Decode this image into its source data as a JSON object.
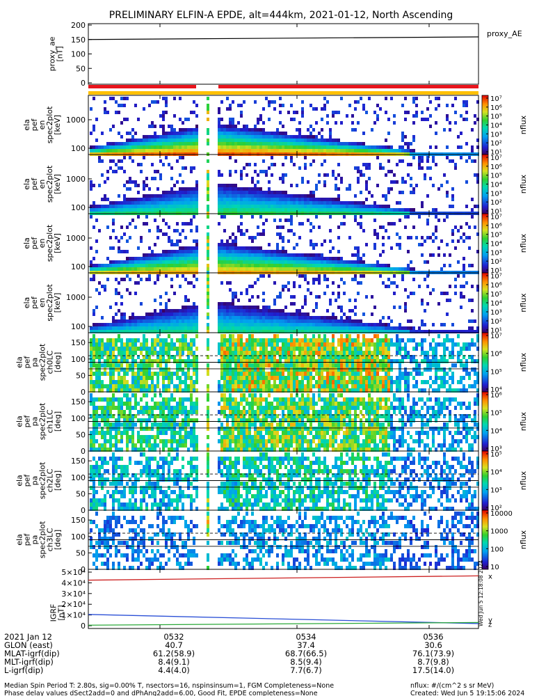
{
  "title": "PRELIMINARY ELFIN-A EPDE, alt=444km, 2021-01-12, North Ascending",
  "colors": {
    "ae_line": "#000000",
    "bar_red": "#e8141c",
    "bar_yellow": "#ffc000",
    "igrf_x": "#cc1f1f",
    "igrf_y": "#2a4fd6",
    "igrf_z": "#2aa838"
  },
  "chart_data": [
    {
      "type": "line",
      "name": "proxy_ae",
      "ylabel_lines": [
        "proxy_ae",
        "[nT]"
      ],
      "legend": "proxy_AE",
      "yticks": [
        "200",
        "150",
        "100",
        "50",
        "0"
      ],
      "ylim": [
        0,
        200
      ],
      "x": [
        "0530:37",
        "0537:10"
      ],
      "values": [
        150,
        159
      ]
    },
    {
      "type": "heatmap",
      "name": "spec-1",
      "ylabel_lines": [
        "ela",
        "pef",
        "en",
        "spec2plot",
        "[keV]"
      ],
      "yticks": [
        "1000",
        "100"
      ],
      "cbar_label": "nflux",
      "cbar_ticks": [
        "10⁷",
        "10⁶",
        "10⁵",
        "10⁴",
        "10³",
        "10²",
        "10¹"
      ]
    },
    {
      "type": "heatmap",
      "name": "spec-2",
      "ylabel_lines": [
        "ela",
        "pef",
        "en",
        "spec2plot",
        "[keV]"
      ],
      "yticks": [
        "1000",
        "100"
      ],
      "cbar_label": "nflux",
      "cbar_ticks": [
        "10⁷",
        "10⁶",
        "10⁵",
        "10⁴",
        "10³",
        "10²",
        "10¹"
      ]
    },
    {
      "type": "heatmap",
      "name": "spec-3",
      "ylabel_lines": [
        "ela",
        "pef",
        "en",
        "spec2plot",
        "[keV]"
      ],
      "yticks": [
        "1000",
        "100"
      ],
      "cbar_label": "nflux",
      "cbar_ticks": [
        "10⁷",
        "10⁶",
        "10⁵",
        "10⁴",
        "10³",
        "10²",
        "10¹"
      ]
    },
    {
      "type": "heatmap",
      "name": "spec-4",
      "ylabel_lines": [
        "ela",
        "pef",
        "en",
        "spec2plot",
        "[keV]"
      ],
      "yticks": [
        "1000",
        "100"
      ],
      "cbar_label": "nflux",
      "cbar_ticks": [
        "10⁷",
        "10⁶",
        "10⁵",
        "10⁴",
        "10³",
        "10²",
        "10¹"
      ]
    },
    {
      "type": "heatmap",
      "name": "pa-ch0",
      "ylabel_lines": [
        "ela",
        "pef",
        "pa",
        "spec2plot",
        "ch0LC",
        "[deg]"
      ],
      "yticks": [
        "150",
        "100",
        "50",
        "0"
      ],
      "ylim": [
        0,
        180
      ],
      "cbar_label": "nflux",
      "cbar_ticks": [
        "10⁷",
        "10⁶",
        "10⁵",
        "10⁴"
      ]
    },
    {
      "type": "heatmap",
      "name": "pa-ch1",
      "ylabel_lines": [
        "ela",
        "pef",
        "pa",
        "spec2plot",
        "ch1LC",
        "[deg]"
      ],
      "yticks": [
        "150",
        "100",
        "50",
        "0"
      ],
      "ylim": [
        0,
        180
      ],
      "cbar_label": "nflux",
      "cbar_ticks": [
        "10⁶",
        "10⁵",
        "10⁴",
        "10³"
      ]
    },
    {
      "type": "heatmap",
      "name": "pa-ch2",
      "ylabel_lines": [
        "ela",
        "pef",
        "pa",
        "spec2plot",
        "ch2LC",
        "[deg]"
      ],
      "yticks": [
        "150",
        "100",
        "50",
        "0"
      ],
      "ylim": [
        0,
        180
      ],
      "cbar_label": "nflux",
      "cbar_ticks": [
        "10⁵",
        "10⁴",
        "10³",
        "10²"
      ]
    },
    {
      "type": "heatmap",
      "name": "pa-ch3",
      "ylabel_lines": [
        "ela",
        "pef",
        "pa",
        "spec2plot",
        "ch3LC",
        "[deg]"
      ],
      "yticks": [
        "150",
        "100",
        "50",
        "0"
      ],
      "ylim": [
        0,
        180
      ],
      "cbar_label": "nflux",
      "cbar_ticks": [
        "10000",
        "1000",
        "100",
        "10"
      ]
    },
    {
      "type": "line",
      "name": "igrf",
      "ylabel_lines": [
        "IGRF",
        "[nT]"
      ],
      "yticks": [
        "5×10⁴",
        "4×10⁴",
        "3×10⁴",
        "2×10⁴",
        "1×10⁴",
        "0"
      ],
      "ylim": [
        0,
        50000
      ],
      "x": [
        "0530:37",
        "0537:10"
      ],
      "series": [
        {
          "name": "x",
          "values": [
            42500,
            46500
          ]
        },
        {
          "name": "y",
          "values": [
            10500,
            2000
          ]
        },
        {
          "name": "z",
          "values": [
            500,
            3000
          ]
        }
      ],
      "legend_labels": [
        "x",
        "y",
        "z"
      ],
      "side_note": "Wed Jun  5 12:18:08 2024"
    }
  ],
  "ephemeris": {
    "rows": [
      {
        "label": "2021 Jan 12",
        "values": [
          "0532",
          "0534",
          "0536"
        ]
      },
      {
        "label": "GLON (east)",
        "values": [
          "40.7",
          "37.4",
          "30.6"
        ]
      },
      {
        "label": "MLAT-igrf(dip)",
        "values": [
          "61.2(58.9)",
          "68.7(66.5)",
          "76.1(73.9)"
        ]
      },
      {
        "label": "MLT-igrf(dip)",
        "values": [
          "8.4(9.1)",
          "8.5(9.4)",
          "8.7(9.8)"
        ]
      },
      {
        "label": "L-igrf(dip)",
        "values": [
          "4.4(4.0)",
          "7.7(6.7)",
          "17.5(14.0)"
        ]
      }
    ]
  },
  "footer": {
    "line1": "Median Spin Period T: 2.80s, sig=0.00% T, nsectors=16, nspinsinsum=1, FGM Completeness=None",
    "line2": "Phase delay values dSect2add=0 and dPhAng2add=6.00, Good Fit, EPDE completeness=None",
    "units": "nflux: #/(cm^2 s sr MeV)",
    "created": "Created: Wed Jun  5 19:15:06 2024"
  }
}
